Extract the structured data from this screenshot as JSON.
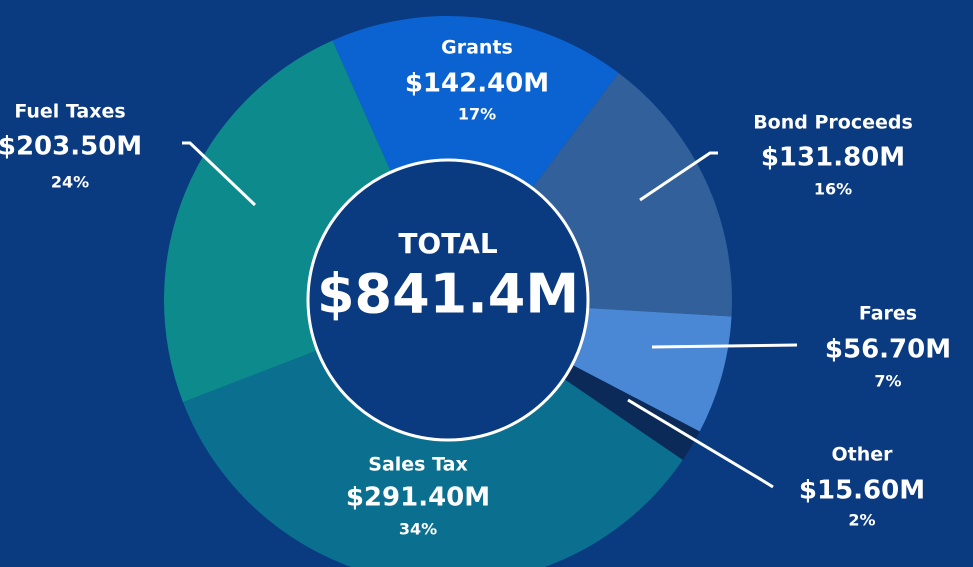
{
  "chart_data": {
    "type": "pie",
    "categories": [
      "Grants",
      "Bond Proceeds",
      "Fares",
      "Other",
      "Sales Tax",
      "Fuel Taxes"
    ],
    "values": [
      142.4,
      131.8,
      56.7,
      15.6,
      291.4,
      203.5
    ],
    "value_labels": [
      "$142.40M",
      "$131.80M",
      "$56.70M",
      "$15.60M",
      "$291.40M",
      "$203.50M"
    ],
    "percent_labels": [
      "17%",
      "16%",
      "7%",
      "2%",
      "34%",
      "24%"
    ],
    "colors": [
      "#0b63d1",
      "#31609a",
      "#4a88d6",
      "#0b2a58",
      "#0b7090",
      "#0d8b8c"
    ],
    "total_label": "TOTAL",
    "total": "$841.4M"
  }
}
